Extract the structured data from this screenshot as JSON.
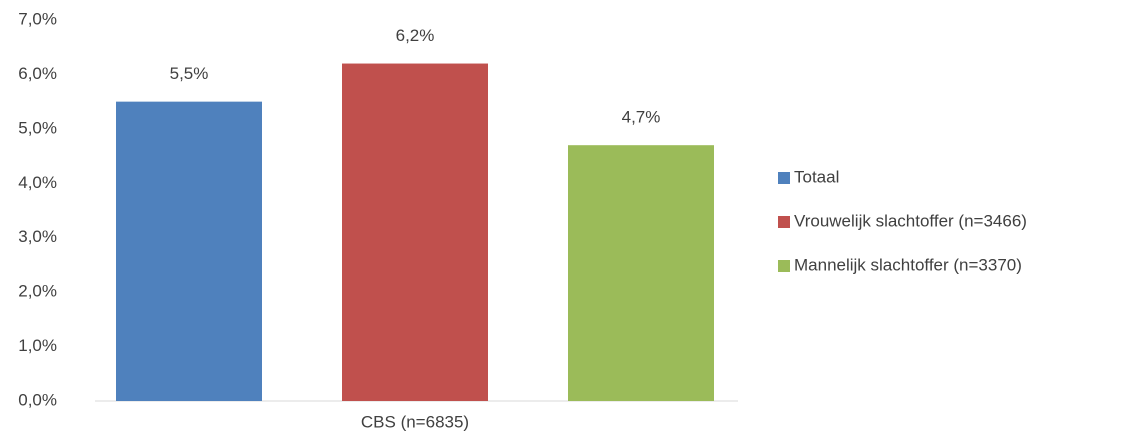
{
  "chart_data": {
    "type": "bar",
    "categories": [
      "CBS (n=6835)"
    ],
    "series": [
      {
        "name": "Totaal",
        "color": "#4f81bd",
        "values": [
          5.5
        ],
        "value_labels": [
          "5,5%"
        ]
      },
      {
        "name": "Vrouwelijk slachtoffer (n=3466)",
        "color": "#c0504d",
        "values": [
          6.2
        ],
        "value_labels": [
          "6,2%"
        ]
      },
      {
        "name": "Mannelijk slachtoffer (n=3370)",
        "color": "#9bbb59",
        "values": [
          4.7
        ],
        "value_labels": [
          "4,7%"
        ]
      }
    ],
    "ylim": [
      0,
      7
    ],
    "yticks": [
      {
        "value": 0,
        "label": "0,0%"
      },
      {
        "value": 1,
        "label": "1,0%"
      },
      {
        "value": 2,
        "label": "2,0%"
      },
      {
        "value": 3,
        "label": "3,0%"
      },
      {
        "value": 4,
        "label": "4,0%"
      },
      {
        "value": 5,
        "label": "5,0%"
      },
      {
        "value": 6,
        "label": "6,0%"
      },
      {
        "value": 7,
        "label": "7,0%"
      }
    ],
    "grid": false,
    "legend": "right"
  }
}
